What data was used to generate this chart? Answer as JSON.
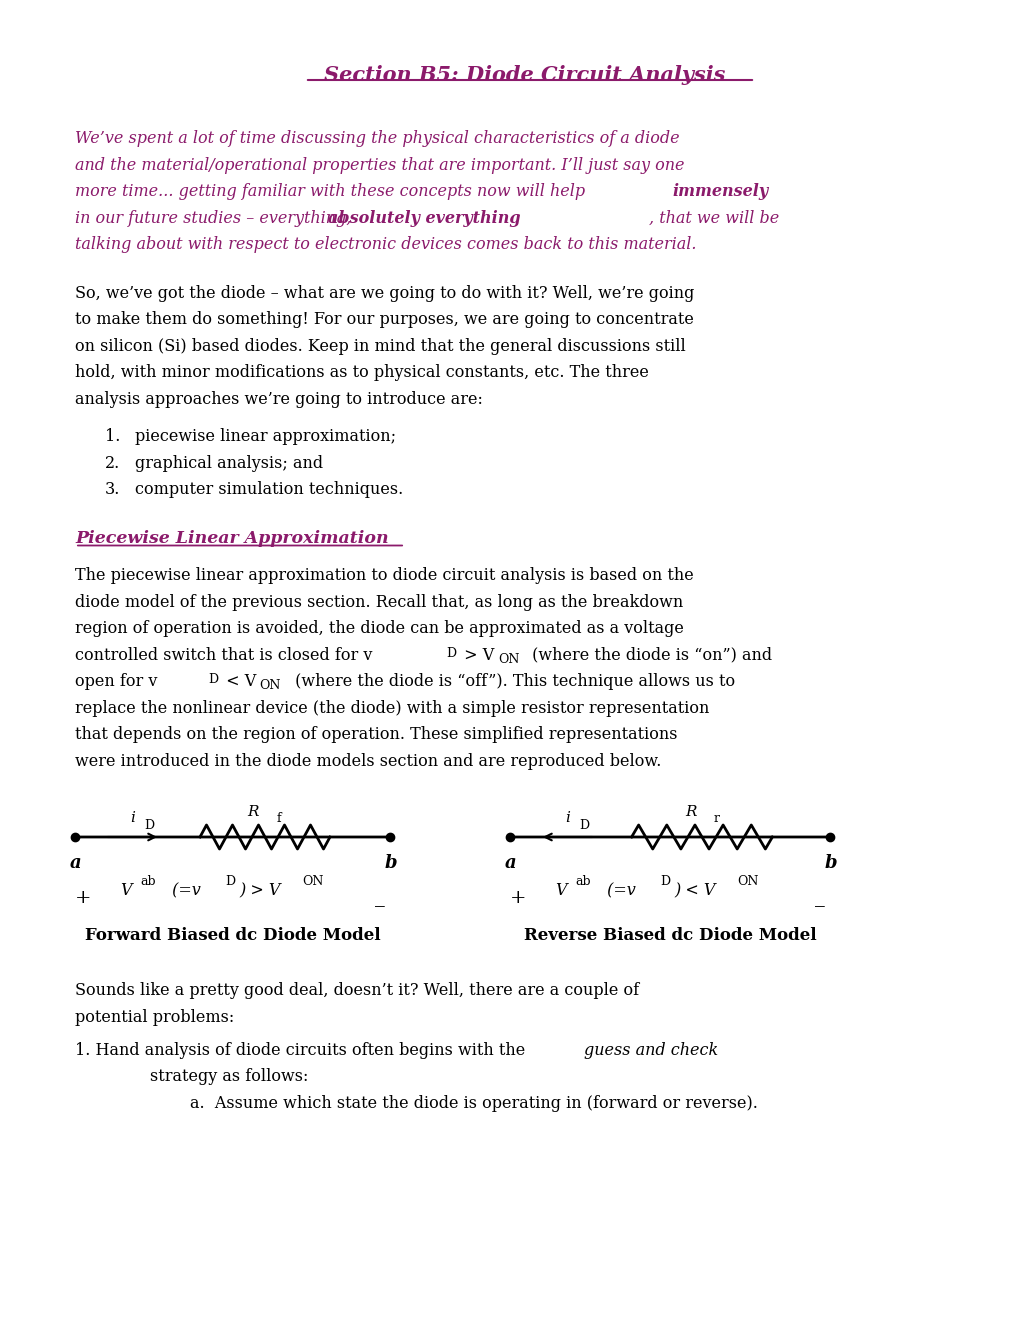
{
  "title": "Section B5: Diode Circuit Analysis",
  "title_color": "#8B1A6B",
  "bg_color": "#FFFFFF",
  "text_color": "#000000",
  "accent_color": "#8B1A6B",
  "intro_italic": "We’ve spent a lot of time discussing the physical characteristics of a diode and the material/operational properties that are important. I’ll just say one more time... getting familiar with these concepts now will help immensely in our future studies – everything, absolutely everything, that we will be talking about with respect to electronic devices comes back to this material.",
  "body1": "So, we’ve got the diode – what are we going to do with it? Well, we’re going to make them do something! For our purposes, we are going to concentrate on silicon (Si) based diodes. Keep in mind that the general discussions still hold, with minor modifications as to physical constants, etc. The three analysis approaches we’re going to introduce are:",
  "list_items": [
    "piecewise linear approximation;",
    "graphical analysis; and",
    "computer simulation techniques."
  ],
  "subsection_title": "Piecewise Linear Approximation",
  "body2": "The piecewise linear approximation to diode circuit analysis is based on the diode model of the previous section. Recall that, as long as the breakdown region of operation is avoided, the diode can be approximated as a voltage controlled switch that is closed for vᴅ > V₀ₙ (where the diode is “on”) and open for vᴅ < V₀ₙ (where the diode is “off”). This technique allows us to replace the nonlinear device (the diode) with a simple resistor representation that depends on the region of operation. These simplified representations were introduced in the diode models section and are reproduced below.",
  "fwd_label": "Forward Biased dc Diode Model",
  "rev_label": "Reverse Biased dc Diode Model",
  "body3": "Sounds like a pretty good deal, doesn’t it? Well, there are a couple of potential problems:",
  "list2_items": [
    "Hand analysis of diode circuits often begins with the guess and check strategy as follows:",
    "Assume which state the diode is operating in (forward or reverse)."
  ]
}
